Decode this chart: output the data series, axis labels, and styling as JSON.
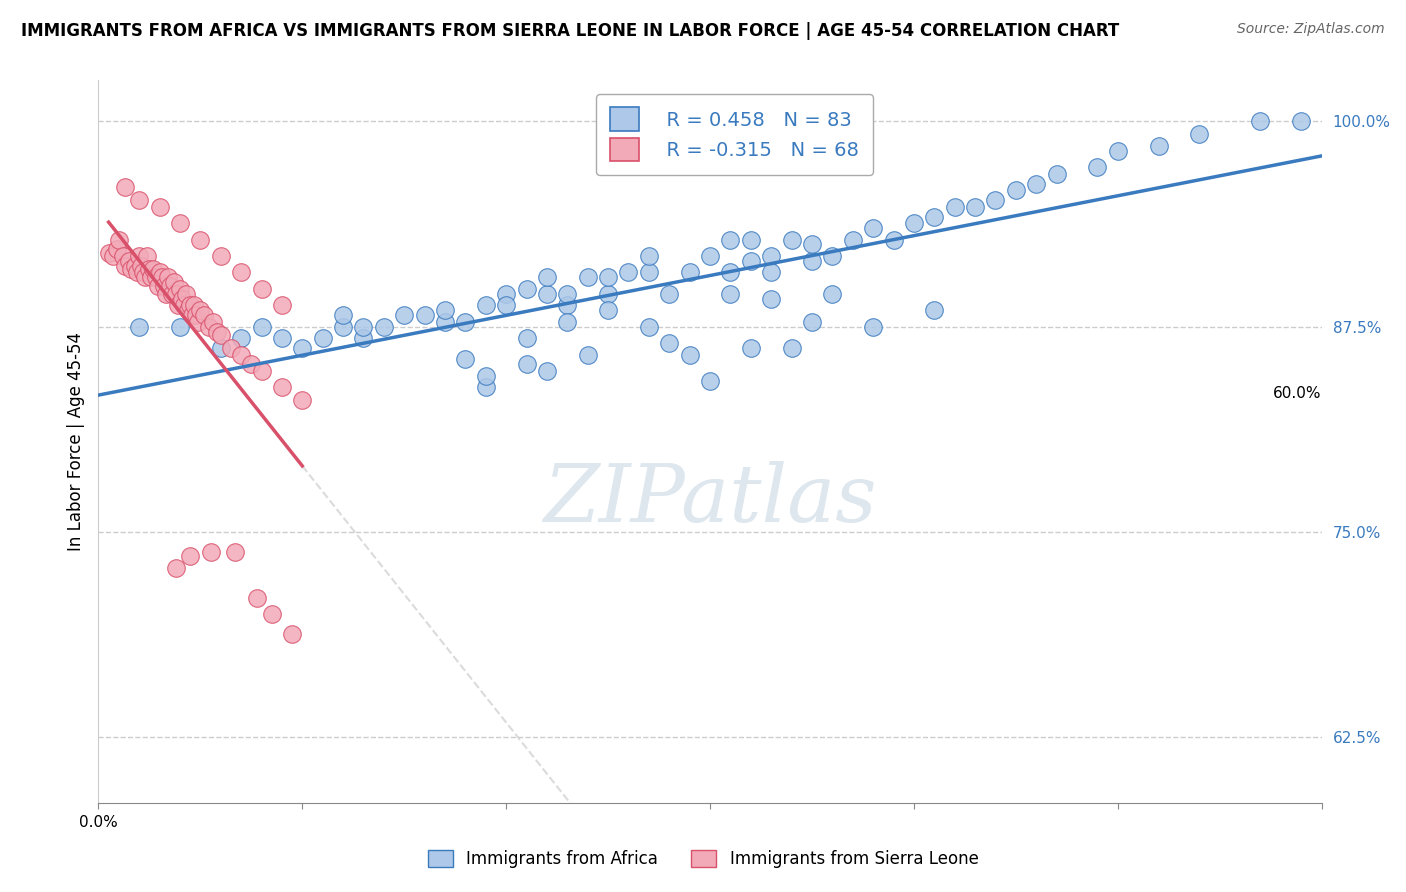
{
  "title": "IMMIGRANTS FROM AFRICA VS IMMIGRANTS FROM SIERRA LEONE IN LABOR FORCE | AGE 45-54 CORRELATION CHART",
  "source": "Source: ZipAtlas.com",
  "ylabel": "In Labor Force | Age 45-54",
  "xlim": [
    0.0,
    0.6
  ],
  "ylim": [
    0.585,
    1.025
  ],
  "ytick_vals": [
    1.0,
    0.875,
    0.75,
    0.625
  ],
  "ytick_labels": [
    "100.0%",
    "87.5%",
    "75.0%",
    "62.5%"
  ],
  "xtick_left_label": "0.0%",
  "xtick_right_label": "60.0%",
  "blue_color": "#adc8e8",
  "pink_color": "#f2aab8",
  "blue_line_color": "#3a7abf",
  "pink_line_color": "#d9506a",
  "pink_dash_color": "#cccccc",
  "blue_r": "R = 0.458",
  "blue_n": "N = 83",
  "pink_r": "R = -0.315",
  "pink_n": "N = 68",
  "watermark": "ZIPatlas",
  "blue_legend_label": "Immigrants from Africa",
  "pink_legend_label": "Immigrants from Sierra Leone",
  "blue_x": [
    0.02,
    0.04,
    0.06,
    0.07,
    0.08,
    0.09,
    0.1,
    0.11,
    0.12,
    0.12,
    0.13,
    0.13,
    0.14,
    0.15,
    0.16,
    0.17,
    0.17,
    0.18,
    0.19,
    0.2,
    0.2,
    0.21,
    0.22,
    0.22,
    0.23,
    0.23,
    0.24,
    0.25,
    0.25,
    0.26,
    0.27,
    0.27,
    0.28,
    0.29,
    0.3,
    0.31,
    0.31,
    0.32,
    0.32,
    0.33,
    0.33,
    0.34,
    0.35,
    0.35,
    0.36,
    0.37,
    0.38,
    0.39,
    0.4,
    0.41,
    0.42,
    0.43,
    0.44,
    0.45,
    0.46,
    0.47,
    0.49,
    0.5,
    0.52,
    0.54,
    0.57,
    0.59,
    0.18,
    0.21,
    0.25,
    0.29,
    0.32,
    0.35,
    0.19,
    0.22,
    0.3,
    0.34,
    0.27,
    0.23,
    0.31,
    0.28,
    0.24,
    0.21,
    0.19,
    0.33,
    0.36,
    0.38,
    0.41
  ],
  "blue_y": [
    0.875,
    0.875,
    0.862,
    0.868,
    0.875,
    0.868,
    0.862,
    0.868,
    0.875,
    0.882,
    0.868,
    0.875,
    0.875,
    0.882,
    0.882,
    0.878,
    0.885,
    0.878,
    0.888,
    0.895,
    0.888,
    0.898,
    0.895,
    0.905,
    0.888,
    0.895,
    0.905,
    0.895,
    0.905,
    0.908,
    0.908,
    0.918,
    0.895,
    0.908,
    0.918,
    0.928,
    0.908,
    0.928,
    0.915,
    0.918,
    0.908,
    0.928,
    0.915,
    0.925,
    0.918,
    0.928,
    0.935,
    0.928,
    0.938,
    0.942,
    0.948,
    0.948,
    0.952,
    0.958,
    0.962,
    0.968,
    0.972,
    0.982,
    0.985,
    0.992,
    1.0,
    1.0,
    0.855,
    0.868,
    0.885,
    0.858,
    0.862,
    0.878,
    0.838,
    0.848,
    0.842,
    0.862,
    0.875,
    0.878,
    0.895,
    0.865,
    0.858,
    0.852,
    0.845,
    0.892,
    0.895,
    0.875,
    0.885
  ],
  "pink_x": [
    0.005,
    0.007,
    0.009,
    0.01,
    0.012,
    0.013,
    0.015,
    0.016,
    0.018,
    0.019,
    0.02,
    0.021,
    0.022,
    0.023,
    0.024,
    0.025,
    0.026,
    0.027,
    0.028,
    0.029,
    0.03,
    0.031,
    0.032,
    0.033,
    0.034,
    0.035,
    0.036,
    0.037,
    0.038,
    0.039,
    0.04,
    0.041,
    0.042,
    0.043,
    0.044,
    0.045,
    0.046,
    0.047,
    0.048,
    0.049,
    0.05,
    0.052,
    0.054,
    0.056,
    0.058,
    0.06,
    0.065,
    0.07,
    0.075,
    0.08,
    0.09,
    0.1,
    0.013,
    0.02,
    0.03,
    0.04,
    0.05,
    0.06,
    0.07,
    0.08,
    0.09,
    0.067,
    0.055,
    0.045,
    0.038,
    0.078,
    0.085,
    0.095
  ],
  "pink_y": [
    0.92,
    0.918,
    0.922,
    0.928,
    0.918,
    0.912,
    0.915,
    0.91,
    0.912,
    0.908,
    0.918,
    0.912,
    0.908,
    0.905,
    0.918,
    0.91,
    0.905,
    0.91,
    0.905,
    0.9,
    0.908,
    0.905,
    0.9,
    0.895,
    0.905,
    0.9,
    0.895,
    0.902,
    0.895,
    0.888,
    0.898,
    0.892,
    0.888,
    0.895,
    0.885,
    0.888,
    0.882,
    0.888,
    0.882,
    0.878,
    0.885,
    0.882,
    0.875,
    0.878,
    0.872,
    0.87,
    0.862,
    0.858,
    0.852,
    0.848,
    0.838,
    0.83,
    0.96,
    0.952,
    0.948,
    0.938,
    0.928,
    0.918,
    0.908,
    0.898,
    0.888,
    0.738,
    0.738,
    0.735,
    0.728,
    0.71,
    0.7,
    0.688
  ]
}
